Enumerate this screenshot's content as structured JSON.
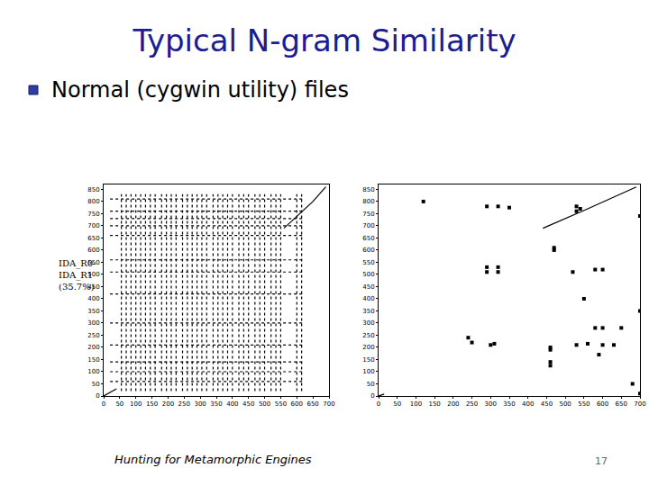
{
  "title": "Typical N-gram Similarity",
  "bullet": "Normal (cygwin utility) files",
  "footer": "Hunting for Metamorphic Engines",
  "page": "17",
  "chart_data": [
    {
      "type": "line",
      "annotation": [
        "IDA_R0-",
        "IDA_R1",
        "(35.7%)"
      ],
      "xlim": [
        0,
        700
      ],
      "xticks": [
        0,
        50,
        100,
        150,
        200,
        250,
        300,
        350,
        400,
        450,
        500,
        550,
        600,
        650,
        700
      ],
      "ylim": [
        0,
        870
      ],
      "yticks": [
        0,
        50,
        100,
        150,
        200,
        250,
        300,
        350,
        400,
        450,
        500,
        550,
        600,
        650,
        700,
        750,
        800,
        850
      ],
      "grid": false,
      "series": [
        {
          "type": "line",
          "color": "#000000",
          "line_style": "dot",
          "x": [
            55,
            55,
            null,
            70,
            70,
            null,
            85,
            85,
            null,
            100,
            100,
            null,
            115,
            115,
            null,
            130,
            130,
            null,
            145,
            145,
            null,
            160,
            160,
            null,
            180,
            180,
            null,
            195,
            195,
            null,
            210,
            210,
            null,
            225,
            225,
            null,
            245,
            245,
            null,
            260,
            260,
            null,
            275,
            275,
            null,
            290,
            290,
            null,
            305,
            305,
            null,
            320,
            320,
            null,
            340,
            340,
            null,
            355,
            355,
            null,
            370,
            370,
            null,
            385,
            385,
            null,
            400,
            400,
            null,
            420,
            420,
            null,
            435,
            435,
            null,
            450,
            450,
            null,
            470,
            470,
            null,
            485,
            485,
            null,
            500,
            500,
            null,
            520,
            520,
            null,
            535,
            535,
            null,
            550,
            550,
            null,
            600,
            600,
            null,
            615,
            615
          ],
          "values": [
            20,
            830,
            null,
            20,
            830,
            null,
            20,
            830,
            null,
            20,
            830,
            null,
            20,
            830,
            null,
            20,
            830,
            null,
            20,
            830,
            null,
            20,
            830,
            null,
            20,
            830,
            null,
            20,
            830,
            null,
            20,
            830,
            null,
            20,
            830,
            null,
            20,
            830,
            null,
            20,
            830,
            null,
            20,
            830,
            null,
            20,
            830,
            null,
            20,
            830,
            null,
            20,
            830,
            null,
            20,
            830,
            null,
            20,
            830,
            null,
            20,
            830,
            null,
            20,
            830,
            null,
            20,
            830,
            null,
            20,
            830,
            null,
            20,
            830,
            null,
            20,
            830,
            null,
            20,
            830,
            null,
            20,
            830,
            null,
            20,
            830,
            null,
            20,
            830,
            null,
            20,
            830,
            null,
            20,
            830,
            null,
            20,
            830,
            null,
            20,
            830
          ]
        },
        {
          "type": "line",
          "color": "#000000",
          "line_style": "dot",
          "x": [
            20,
            620,
            null,
            20,
            620,
            null,
            20,
            620,
            null,
            20,
            620,
            null,
            20,
            620,
            null,
            20,
            620,
            null,
            20,
            620,
            null,
            20,
            620,
            null,
            20,
            620,
            null,
            20,
            620,
            null,
            20,
            620,
            null,
            20,
            620,
            null,
            20,
            620
          ],
          "values": [
            810,
            810,
            null,
            760,
            760,
            null,
            730,
            730,
            null,
            700,
            700,
            null,
            660,
            660,
            null,
            560,
            560,
            null,
            510,
            510,
            null,
            420,
            420,
            null,
            300,
            300,
            null,
            210,
            210,
            null,
            140,
            140,
            null,
            100,
            100,
            null,
            60,
            60
          ]
        },
        {
          "type": "line",
          "color": "#000000",
          "line_style": "solid",
          "x": [
            0,
            40,
            null,
            560,
            600,
            650,
            690
          ],
          "values": [
            0,
            30,
            null,
            690,
            740,
            800,
            860
          ]
        }
      ]
    },
    {
      "type": "scatter",
      "xlim": [
        0,
        700
      ],
      "xticks": [
        0,
        50,
        100,
        150,
        200,
        250,
        300,
        350,
        400,
        450,
        500,
        550,
        600,
        650,
        700
      ],
      "ylim": [
        0,
        870
      ],
      "yticks": [
        0,
        50,
        100,
        150,
        200,
        250,
        300,
        350,
        400,
        450,
        500,
        550,
        600,
        650,
        700,
        750,
        800,
        850
      ],
      "grid": false,
      "series": [
        {
          "type": "line",
          "color": "#000000",
          "line_style": "solid",
          "x": [
            0,
            15,
            null,
            440,
            560,
            690
          ],
          "values": [
            0,
            8,
            null,
            690,
            770,
            860
          ]
        },
        {
          "type": "scatter",
          "color": "#000000",
          "marker": "square",
          "x": [
            290,
            320,
            350,
            530,
            540,
            530,
            700,
            470,
            470,
            290,
            320,
            290,
            320,
            520,
            580,
            600,
            240,
            250,
            300,
            310,
            530,
            560,
            600,
            630,
            580,
            600,
            650,
            460,
            460,
            460,
            460,
            680,
            700,
            120,
            590,
            700,
            550
          ],
          "values": [
            780,
            780,
            775,
            760,
            770,
            780,
            740,
            600,
            610,
            530,
            530,
            510,
            510,
            510,
            520,
            520,
            240,
            220,
            210,
            215,
            210,
            215,
            210,
            210,
            280,
            280,
            280,
            200,
            190,
            140,
            125,
            50,
            10,
            800,
            170,
            350,
            400
          ]
        }
      ]
    }
  ]
}
